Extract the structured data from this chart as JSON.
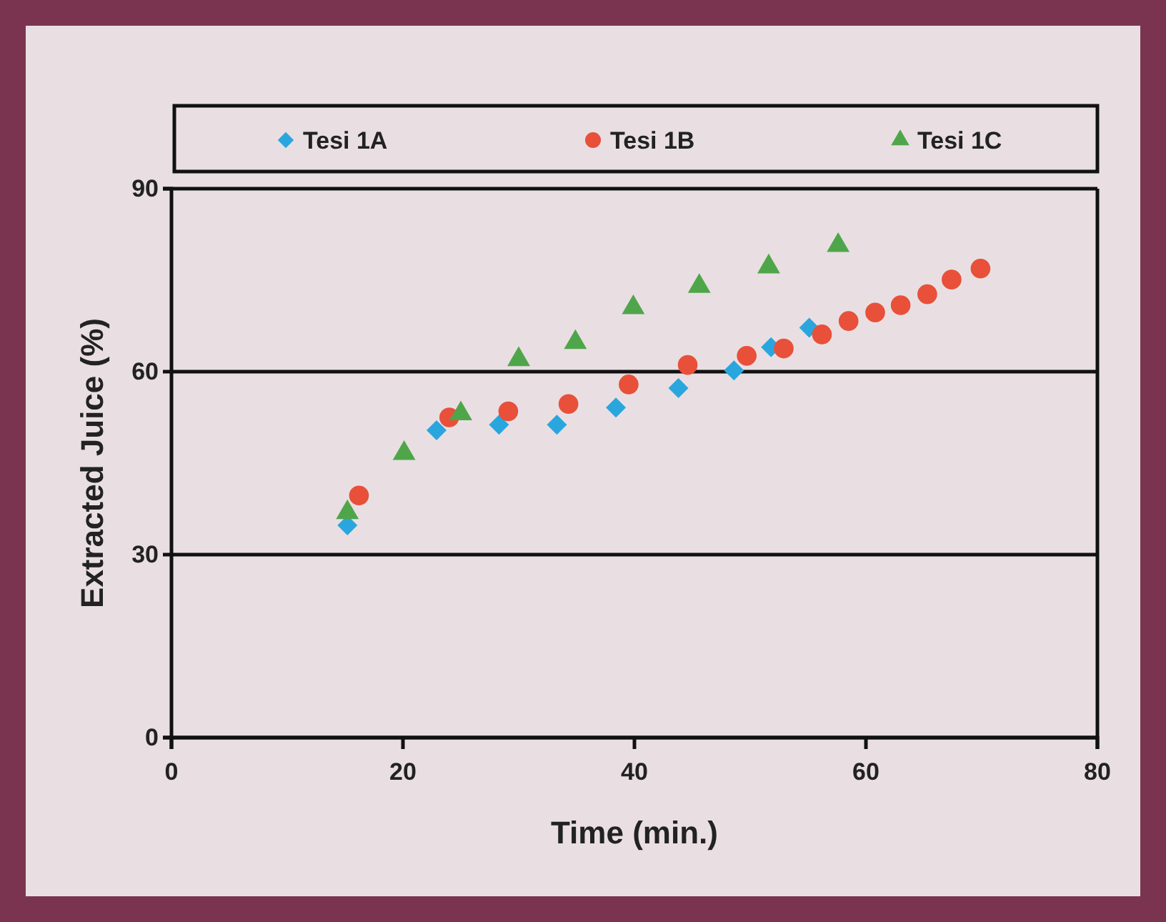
{
  "chart_data": {
    "type": "scatter",
    "xlabel": "Time (min.)",
    "ylabel": "Extracted Juice (%)",
    "xlim": [
      0,
      80
    ],
    "xticks": [
      0,
      20,
      40,
      60,
      80
    ],
    "ylim": [
      0,
      90
    ],
    "yticks": [
      0,
      30,
      60,
      90
    ],
    "grid": "y",
    "legend": "top",
    "series": [
      {
        "name": "Tesi 1A",
        "color": "#2aa6df",
        "marker": "diamond",
        "x": [
          15.2,
          22.9,
          28.3,
          33.3,
          38.4,
          43.8,
          48.6,
          51.8,
          55.1
        ],
        "values": [
          34.8,
          50.4,
          51.3,
          51.3,
          54.1,
          57.3,
          60.2,
          64.0,
          67.2
        ]
      },
      {
        "name": "Tesi 1B",
        "color": "#e8503a",
        "marker": "circle",
        "x": [
          16.2,
          24.0,
          29.1,
          34.3,
          39.5,
          44.6,
          49.7,
          52.9,
          56.2,
          58.5,
          60.8,
          63.0,
          65.3,
          67.4,
          69.9
        ],
        "values": [
          39.7,
          52.5,
          53.5,
          54.7,
          57.9,
          61.1,
          62.6,
          63.8,
          66.1,
          68.3,
          69.7,
          70.9,
          72.7,
          75.1,
          76.9
        ]
      },
      {
        "name": "Tesi 1C",
        "color": "#4fa64a",
        "marker": "triangle",
        "x": [
          15.2,
          20.1,
          25.0,
          30.0,
          34.9,
          39.9,
          45.6,
          51.6,
          57.6
        ],
        "values": [
          36.9,
          46.6,
          53.1,
          62.0,
          64.8,
          70.5,
          74.0,
          77.2,
          80.7
        ]
      }
    ]
  }
}
